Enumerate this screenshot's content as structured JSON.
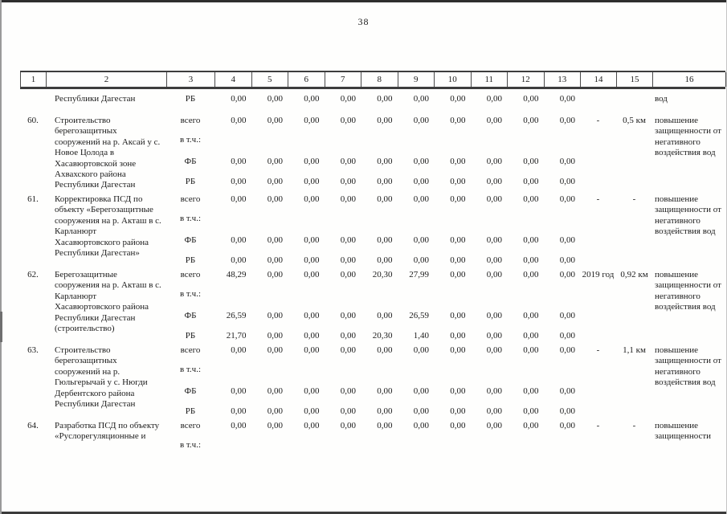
{
  "page": {
    "number": "38"
  },
  "table": {
    "headers": [
      "1",
      "2",
      "3",
      "4",
      "5",
      "6",
      "7",
      "8",
      "9",
      "10",
      "11",
      "12",
      "13",
      "14",
      "15",
      "16"
    ],
    "carryover_row": {
      "name": "Республики Дагестан",
      "label": "РБ",
      "values": [
        "0,00",
        "0,00",
        "0,00",
        "0,00",
        "0,00",
        "0,00",
        "0,00",
        "0,00",
        "0,00",
        "0,00"
      ],
      "result": "вод"
    },
    "blocks": [
      {
        "num": "60.",
        "name": "Строительство берегозащитных сооружений на р. Аксай у с. Новое Цолода в Хасавюртовской зоне Ахвахского района Республики Дагестан",
        "lines": [
          {
            "label": "всего",
            "values": [
              "0,00",
              "0,00",
              "0,00",
              "0,00",
              "0,00",
              "0,00",
              "0,00",
              "0,00",
              "0,00",
              "0,00"
            ]
          },
          {
            "label": "в т.ч.:",
            "values": []
          },
          {
            "label": "ФБ",
            "values": [
              "0,00",
              "0,00",
              "0,00",
              "0,00",
              "0,00",
              "0,00",
              "0,00",
              "0,00",
              "0,00",
              "0,00"
            ]
          },
          {
            "label": "РБ",
            "values": [
              "0,00",
              "0,00",
              "0,00",
              "0,00",
              "0,00",
              "0,00",
              "0,00",
              "0,00",
              "0,00",
              "0,00"
            ]
          }
        ],
        "term": "-",
        "capacity": "0,5 км",
        "result": "повышение защищенности от негативного воздействия вод"
      },
      {
        "num": "61.",
        "name": "Корректировка ПСД по объекту «Берегозащитные сооружения на р. Акташ в с. Карланюрт Хасавюртовского района Республики Дагестан»",
        "lines": [
          {
            "label": "всего",
            "values": [
              "0,00",
              "0,00",
              "0,00",
              "0,00",
              "0,00",
              "0,00",
              "0,00",
              "0,00",
              "0,00",
              "0,00"
            ]
          },
          {
            "label": "в т.ч.:",
            "values": []
          },
          {
            "label": "ФБ",
            "values": [
              "0,00",
              "0,00",
              "0,00",
              "0,00",
              "0,00",
              "0,00",
              "0,00",
              "0,00",
              "0,00",
              "0,00"
            ]
          },
          {
            "label": "РБ",
            "values": [
              "0,00",
              "0,00",
              "0,00",
              "0,00",
              "0,00",
              "0,00",
              "0,00",
              "0,00",
              "0,00",
              "0,00"
            ]
          }
        ],
        "term": "-",
        "capacity": "-",
        "result": "повышение защищенности от негативного воздействия вод"
      },
      {
        "num": "62.",
        "name": "Берегозащитные сооружения на р. Акташ в с. Карланюрт Хасавюртовского района Республики Дагестан (строительство)",
        "lines": [
          {
            "label": "всего",
            "values": [
              "48,29",
              "0,00",
              "0,00",
              "0,00",
              "20,30",
              "27,99",
              "0,00",
              "0,00",
              "0,00",
              "0,00"
            ]
          },
          {
            "label": "в т.ч.:",
            "values": []
          },
          {
            "label": "ФБ",
            "values": [
              "26,59",
              "0,00",
              "0,00",
              "0,00",
              "0,00",
              "26,59",
              "0,00",
              "0,00",
              "0,00",
              "0,00"
            ]
          },
          {
            "label": "РБ",
            "values": [
              "21,70",
              "0,00",
              "0,00",
              "0,00",
              "20,30",
              "1,40",
              "0,00",
              "0,00",
              "0,00",
              "0,00"
            ]
          }
        ],
        "term": "2019 год",
        "capacity": "0,92 км",
        "result": "повышение защищенности от негативного воздействия вод"
      },
      {
        "num": "63.",
        "name": "Строительство берегозащитных сооружений на р. Гюльгерычай у с. Нюгди Дербентского района Республики Дагестан",
        "lines": [
          {
            "label": "всего",
            "values": [
              "0,00",
              "0,00",
              "0,00",
              "0,00",
              "0,00",
              "0,00",
              "0,00",
              "0,00",
              "0,00",
              "0,00"
            ]
          },
          {
            "label": "в т.ч.:",
            "values": []
          },
          {
            "label": "ФБ",
            "values": [
              "0,00",
              "0,00",
              "0,00",
              "0,00",
              "0,00",
              "0,00",
              "0,00",
              "0,00",
              "0,00",
              "0,00"
            ]
          },
          {
            "label": "РБ",
            "values": [
              "0,00",
              "0,00",
              "0,00",
              "0,00",
              "0,00",
              "0,00",
              "0,00",
              "0,00",
              "0,00",
              "0,00"
            ]
          }
        ],
        "term": "-",
        "capacity": "1,1 км",
        "result": "повышение защищенности от негативного воздействия вод"
      },
      {
        "num": "64.",
        "name": "Разработка ПСД по объекту «Руслорегуляционные и",
        "lines": [
          {
            "label": "всего",
            "values": [
              "0,00",
              "0,00",
              "0,00",
              "0,00",
              "0,00",
              "0,00",
              "0,00",
              "0,00",
              "0,00",
              "0,00"
            ]
          },
          {
            "label": "в т.ч.:",
            "values": []
          }
        ],
        "term": "-",
        "capacity": "-",
        "result": "повышение защищенности"
      }
    ]
  }
}
